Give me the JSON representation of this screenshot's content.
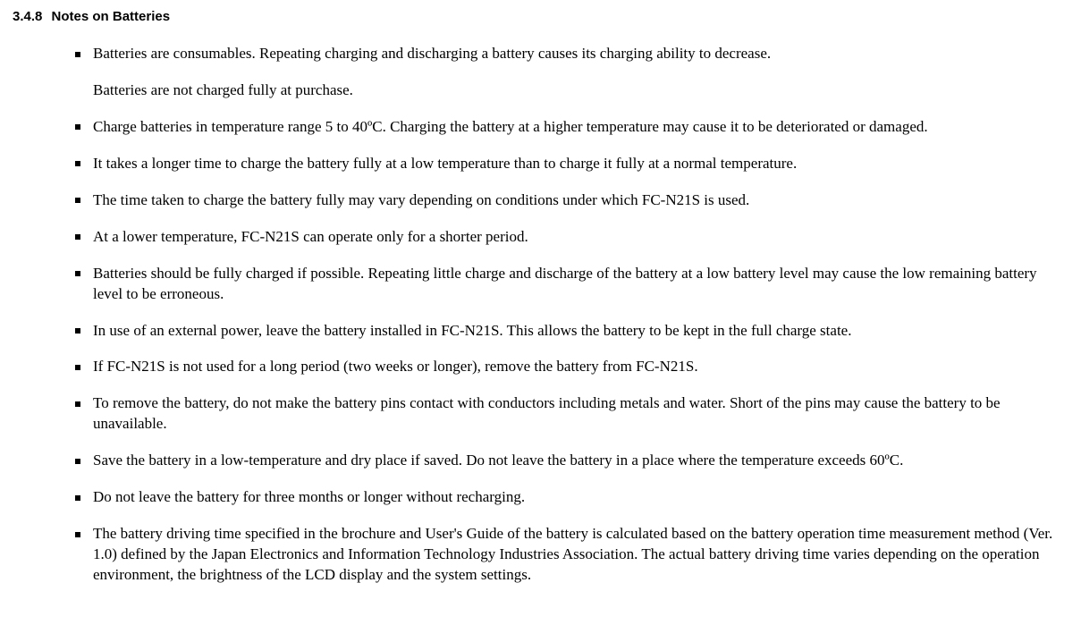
{
  "heading": {
    "number": "3.4.8",
    "title": "Notes on Batteries"
  },
  "items": [
    {
      "text": "Batteries are consumables. Repeating charging and discharging a battery causes its charging ability to decrease.",
      "sub": "Batteries are not charged fully at purchase."
    },
    {
      "text": "Charge batteries in temperature range 5 to 40ºC. Charging the battery at a higher temperature may cause it to be deteriorated or damaged."
    },
    {
      "text": "It takes a longer time to charge the battery fully at a low temperature than to charge it fully at a normal temperature."
    },
    {
      "text": "The time taken to charge the battery fully may vary depending on conditions under which FC-N21S is used."
    },
    {
      "text": "At a lower temperature, FC-N21S can operate only for a shorter period."
    },
    {
      "text": "Batteries should be fully charged if possible. Repeating little charge and discharge of the battery at a low battery level may cause the low remaining battery level to be erroneous."
    },
    {
      "text": "In use of an external power, leave the battery installed in FC-N21S. This allows the battery to be kept in the full charge state."
    },
    {
      "text": "If FC-N21S is not used for a long period (two weeks or longer), remove the battery from FC-N21S."
    },
    {
      "text": "To remove the battery, do not make the battery pins contact with conductors including metals and water. Short of the pins may cause the battery to be unavailable."
    },
    {
      "text": "Save the battery in a low-temperature and dry place if saved. Do not leave the battery in a place where the temperature exceeds 60ºC."
    },
    {
      "text": "Do not leave the battery for three months or longer without recharging."
    },
    {
      "text": "The battery driving time specified in the brochure and User's Guide of the battery is calculated based on the battery operation time measurement method (Ver. 1.0) defined by the Japan Electronics and Information Technology Industries Association. The actual battery driving time varies depending on the operation environment, the brightness of the LCD display and the system settings."
    }
  ]
}
